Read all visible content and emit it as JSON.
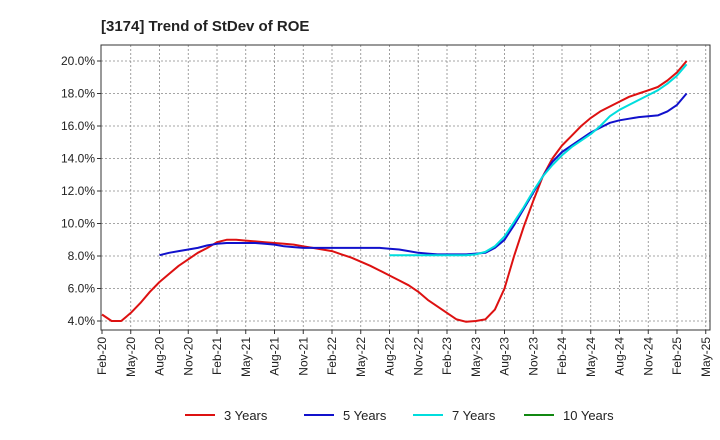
{
  "chart_data": {
    "type": "line",
    "title": "[3174]  Trend of StDev of ROE",
    "xlabel": "",
    "ylabel": "",
    "x_ticks": [
      "Feb-20",
      "May-20",
      "Aug-20",
      "Nov-20",
      "Feb-21",
      "May-21",
      "Aug-21",
      "Nov-21",
      "Feb-22",
      "May-22",
      "Aug-22",
      "Nov-22",
      "Feb-23",
      "May-23",
      "Aug-23",
      "Nov-23",
      "Feb-24",
      "May-24",
      "Aug-24",
      "Nov-24",
      "Feb-25",
      "May-25"
    ],
    "y_ticks": [
      "4.0%",
      "6.0%",
      "8.0%",
      "10.0%",
      "12.0%",
      "14.0%",
      "16.0%",
      "18.0%",
      "20.0%"
    ],
    "ylim": [
      3.5,
      20.3
    ],
    "xlim_months": [
      0,
      63
    ],
    "grid": true,
    "legend_position": "bottom",
    "series": [
      {
        "name": "3 Years",
        "color": "#dd1111",
        "points": [
          [
            0,
            4.4
          ],
          [
            1,
            4.0
          ],
          [
            2,
            4.0
          ],
          [
            3,
            4.5
          ],
          [
            4,
            5.1
          ],
          [
            5,
            5.8
          ],
          [
            6,
            6.4
          ],
          [
            7,
            6.9
          ],
          [
            8,
            7.4
          ],
          [
            9,
            7.8
          ],
          [
            10,
            8.2
          ],
          [
            11,
            8.5
          ],
          [
            12,
            8.85
          ],
          [
            13,
            9.0
          ],
          [
            14,
            9.0
          ],
          [
            15,
            8.95
          ],
          [
            16,
            8.9
          ],
          [
            17,
            8.85
          ],
          [
            18,
            8.8
          ],
          [
            19,
            8.75
          ],
          [
            20,
            8.7
          ],
          [
            21,
            8.6
          ],
          [
            22,
            8.5
          ],
          [
            23,
            8.4
          ],
          [
            24,
            8.3
          ],
          [
            25,
            8.1
          ],
          [
            26,
            7.9
          ],
          [
            27,
            7.65
          ],
          [
            28,
            7.4
          ],
          [
            29,
            7.1
          ],
          [
            30,
            6.8
          ],
          [
            31,
            6.5
          ],
          [
            32,
            6.2
          ],
          [
            33,
            5.8
          ],
          [
            34,
            5.3
          ],
          [
            35,
            4.9
          ],
          [
            36,
            4.5
          ],
          [
            37,
            4.1
          ],
          [
            38,
            3.95
          ],
          [
            39,
            4.0
          ],
          [
            40,
            4.1
          ],
          [
            41,
            4.7
          ],
          [
            42,
            6.0
          ],
          [
            43,
            8.0
          ],
          [
            44,
            9.8
          ],
          [
            45,
            11.4
          ],
          [
            46,
            12.9
          ],
          [
            47,
            14.0
          ],
          [
            48,
            14.8
          ],
          [
            49,
            15.4
          ],
          [
            50,
            16.0
          ],
          [
            51,
            16.5
          ],
          [
            52,
            16.9
          ],
          [
            53,
            17.2
          ],
          [
            54,
            17.5
          ],
          [
            55,
            17.8
          ],
          [
            56,
            18.0
          ],
          [
            57,
            18.2
          ],
          [
            58,
            18.4
          ],
          [
            59,
            18.8
          ],
          [
            60,
            19.3
          ],
          [
            61,
            20.0
          ]
        ]
      },
      {
        "name": "5 Years",
        "color": "#1111cc",
        "points": [
          [
            6,
            8.05
          ],
          [
            7,
            8.2
          ],
          [
            8,
            8.3
          ],
          [
            9,
            8.4
          ],
          [
            10,
            8.5
          ],
          [
            11,
            8.65
          ],
          [
            12,
            8.75
          ],
          [
            13,
            8.8
          ],
          [
            14,
            8.8
          ],
          [
            15,
            8.8
          ],
          [
            16,
            8.8
          ],
          [
            17,
            8.75
          ],
          [
            18,
            8.7
          ],
          [
            19,
            8.6
          ],
          [
            20,
            8.55
          ],
          [
            21,
            8.5
          ],
          [
            22,
            8.5
          ],
          [
            23,
            8.5
          ],
          [
            24,
            8.5
          ],
          [
            25,
            8.5
          ],
          [
            26,
            8.5
          ],
          [
            27,
            8.5
          ],
          [
            28,
            8.5
          ],
          [
            29,
            8.5
          ],
          [
            30,
            8.45
          ],
          [
            31,
            8.4
          ],
          [
            32,
            8.3
          ],
          [
            33,
            8.2
          ],
          [
            34,
            8.15
          ],
          [
            35,
            8.1
          ],
          [
            36,
            8.1
          ],
          [
            37,
            8.1
          ],
          [
            38,
            8.1
          ],
          [
            39,
            8.15
          ],
          [
            40,
            8.2
          ],
          [
            41,
            8.5
          ],
          [
            42,
            9.0
          ],
          [
            43,
            9.9
          ],
          [
            44,
            10.9
          ],
          [
            45,
            11.9
          ],
          [
            46,
            12.9
          ],
          [
            47,
            13.8
          ],
          [
            48,
            14.4
          ],
          [
            49,
            14.8
          ],
          [
            50,
            15.2
          ],
          [
            51,
            15.6
          ],
          [
            52,
            15.9
          ],
          [
            53,
            16.2
          ],
          [
            54,
            16.35
          ],
          [
            55,
            16.45
          ],
          [
            56,
            16.55
          ],
          [
            57,
            16.6
          ],
          [
            58,
            16.65
          ],
          [
            59,
            16.9
          ],
          [
            60,
            17.3
          ],
          [
            61,
            18.0
          ]
        ]
      },
      {
        "name": "7 Years",
        "color": "#00dddd",
        "points": [
          [
            30,
            8.05
          ],
          [
            31,
            8.05
          ],
          [
            32,
            8.05
          ],
          [
            33,
            8.05
          ],
          [
            34,
            8.05
          ],
          [
            35,
            8.05
          ],
          [
            36,
            8.05
          ],
          [
            37,
            8.05
          ],
          [
            38,
            8.05
          ],
          [
            39,
            8.1
          ],
          [
            40,
            8.25
          ],
          [
            41,
            8.6
          ],
          [
            42,
            9.2
          ],
          [
            43,
            10.1
          ],
          [
            44,
            11.0
          ],
          [
            45,
            12.0
          ],
          [
            46,
            12.9
          ],
          [
            47,
            13.6
          ],
          [
            48,
            14.2
          ],
          [
            49,
            14.7
          ],
          [
            50,
            15.1
          ],
          [
            51,
            15.5
          ],
          [
            52,
            16.0
          ],
          [
            53,
            16.6
          ],
          [
            54,
            17.0
          ],
          [
            55,
            17.3
          ],
          [
            56,
            17.6
          ],
          [
            57,
            17.9
          ],
          [
            58,
            18.2
          ],
          [
            59,
            18.6
          ],
          [
            60,
            19.1
          ],
          [
            61,
            19.8
          ]
        ]
      },
      {
        "name": "10 Years",
        "color": "#118811",
        "points": []
      }
    ]
  }
}
